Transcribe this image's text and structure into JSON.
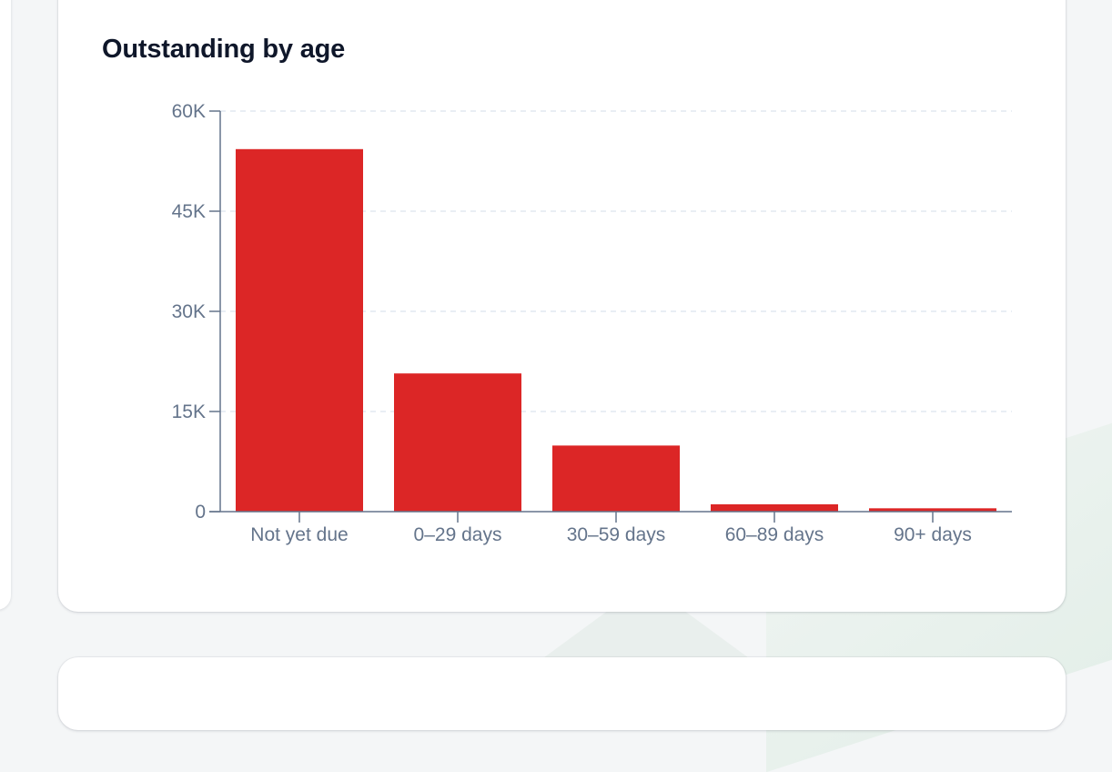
{
  "card": {
    "title": "Outstanding by age"
  },
  "chart_data": {
    "type": "bar",
    "title": "Outstanding by age",
    "categories": [
      "Not yet due",
      "0–29 days",
      "30–59 days",
      "60–89 days",
      "90+ days"
    ],
    "values": [
      54300,
      20700,
      9900,
      1100,
      500
    ],
    "ylim": [
      0,
      60000
    ],
    "yticks": [
      0,
      15000,
      30000,
      45000,
      60000
    ],
    "ytick_labels": [
      "0",
      "15K",
      "30K",
      "45K",
      "60K"
    ],
    "grid": true,
    "legend": "none",
    "colors": {
      "bar": "#dc2626",
      "axis": "#64748b",
      "grid": "#e2e8f0"
    }
  }
}
